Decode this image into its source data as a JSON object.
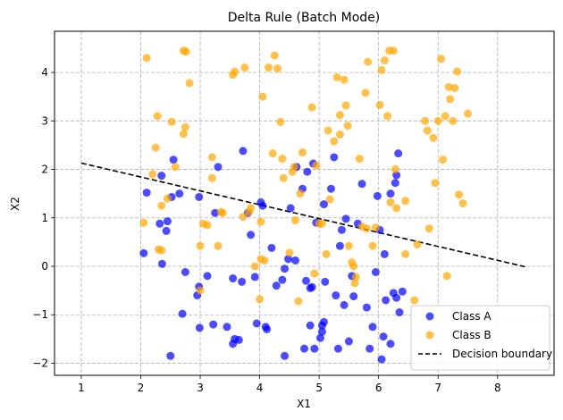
{
  "chart_data": {
    "type": "scatter",
    "title": "Delta Rule (Batch Mode)",
    "xlabel": "X1",
    "ylabel": "X2",
    "xlim": [
      0.55,
      8.95
    ],
    "ylim": [
      -2.25,
      4.85
    ],
    "xticks": [
      1,
      2,
      3,
      4,
      5,
      6,
      7,
      8
    ],
    "yticks": [
      -2,
      -1,
      0,
      1,
      2,
      3,
      4
    ],
    "grid": true,
    "legend_position": "lower-right",
    "colors": {
      "class_a": "#0000ff",
      "class_b": "#ffa500",
      "boundary": "#000000"
    },
    "series": [
      {
        "name": "Class A",
        "points": [
          [
            2.05,
            0.27
          ],
          [
            2.1,
            1.52
          ],
          [
            2.32,
            0.88
          ],
          [
            2.36,
            0.05
          ],
          [
            2.35,
            1.87
          ],
          [
            2.45,
            0.93
          ],
          [
            2.43,
            0.73
          ],
          [
            2.52,
            1.43
          ],
          [
            2.55,
            2.2
          ],
          [
            2.5,
            -1.85
          ],
          [
            2.65,
            1.5
          ],
          [
            2.7,
            -0.98
          ],
          [
            2.75,
            -0.12
          ],
          [
            2.95,
            -0.6
          ],
          [
            2.98,
            -0.42
          ],
          [
            2.98,
            1.43
          ],
          [
            2.99,
            -1.27
          ],
          [
            3.12,
            -0.2
          ],
          [
            3.22,
            -1.2
          ],
          [
            3.25,
            1.1
          ],
          [
            3.3,
            2.05
          ],
          [
            3.45,
            -1.25
          ],
          [
            3.55,
            -0.25
          ],
          [
            3.55,
            -1.6
          ],
          [
            3.58,
            -1.5
          ],
          [
            3.65,
            -1.52
          ],
          [
            3.7,
            -0.32
          ],
          [
            3.72,
            2.38
          ],
          [
            3.8,
            1.1
          ],
          [
            3.85,
            0.65
          ],
          [
            3.92,
            -0.22
          ],
          [
            3.95,
            -1.18
          ],
          [
            4.02,
            1.32
          ],
          [
            4.05,
            1.25
          ],
          [
            4.1,
            -1.25
          ],
          [
            4.12,
            -1.3
          ],
          [
            4.2,
            0.38
          ],
          [
            4.28,
            -0.4
          ],
          [
            4.38,
            -0.28
          ],
          [
            4.42,
            -1.85
          ],
          [
            4.42,
            -0.05
          ],
          [
            4.48,
            0.15
          ],
          [
            4.52,
            1.2
          ],
          [
            4.6,
            0.12
          ],
          [
            4.62,
            2.05
          ],
          [
            4.72,
            1.6
          ],
          [
            4.75,
            -1.7
          ],
          [
            4.78,
            -0.3
          ],
          [
            4.8,
            1.95
          ],
          [
            4.85,
            -1.22
          ],
          [
            4.85,
            -0.45
          ],
          [
            4.88,
            -0.43
          ],
          [
            4.9,
            2.12
          ],
          [
            4.92,
            -1.7
          ],
          [
            4.95,
            0.9
          ],
          [
            5.02,
            -1.48
          ],
          [
            5.05,
            -1.22
          ],
          [
            5.08,
            -1.15
          ],
          [
            5.05,
            -1.35
          ],
          [
            5.08,
            1.28
          ],
          [
            5.1,
            -0.32
          ],
          [
            5.2,
            1.6
          ],
          [
            5.25,
            2.25
          ],
          [
            5.28,
            -0.6
          ],
          [
            5.32,
            -1.7
          ],
          [
            5.35,
            0.42
          ],
          [
            5.38,
            0.75
          ],
          [
            5.42,
            -0.8
          ],
          [
            5.45,
            0.98
          ],
          [
            5.5,
            -1.55
          ],
          [
            5.55,
            -0.2
          ],
          [
            5.58,
            -0.62
          ],
          [
            5.65,
            0.88
          ],
          [
            5.72,
            1.7
          ],
          [
            5.8,
            -0.85
          ],
          [
            5.85,
            -1.7
          ],
          [
            5.9,
            -1.25
          ],
          [
            5.95,
            -0.12
          ],
          [
            5.98,
            1.45
          ],
          [
            6.02,
            0.75
          ],
          [
            6.05,
            -1.92
          ],
          [
            6.08,
            -1.45
          ],
          [
            6.1,
            0.25
          ],
          [
            6.12,
            -0.7
          ],
          [
            6.2,
            1.5
          ],
          [
            6.2,
            -1.6
          ],
          [
            6.25,
            -0.55
          ],
          [
            6.28,
            1.72
          ],
          [
            6.3,
            -0.65
          ],
          [
            6.3,
            1.88
          ],
          [
            6.33,
            2.33
          ],
          [
            6.4,
            -0.52
          ],
          [
            6.35,
            -0.95
          ]
        ]
      },
      {
        "name": "Class B",
        "points": [
          [
            2.1,
            4.3
          ],
          [
            2.05,
            0.9
          ],
          [
            2.2,
            1.9
          ],
          [
            2.25,
            2.45
          ],
          [
            2.28,
            3.1
          ],
          [
            2.3,
            0.35
          ],
          [
            2.35,
            0.33
          ],
          [
            2.35,
            1.25
          ],
          [
            2.45,
            1.4
          ],
          [
            2.52,
            2.98
          ],
          [
            2.58,
            2.05
          ],
          [
            2.72,
            2.73
          ],
          [
            2.72,
            4.45
          ],
          [
            2.75,
            2.87
          ],
          [
            2.76,
            4.43
          ],
          [
            2.82,
            3.78
          ],
          [
            3.0,
            0.42
          ],
          [
            3.0,
            -0.5
          ],
          [
            3.05,
            0.88
          ],
          [
            3.12,
            0.85
          ],
          [
            3.2,
            1.82
          ],
          [
            3.2,
            2.25
          ],
          [
            3.3,
            0.42
          ],
          [
            3.35,
            1.12
          ],
          [
            3.38,
            1.1
          ],
          [
            3.55,
            3.95
          ],
          [
            3.58,
            4.02
          ],
          [
            3.72,
            1.02
          ],
          [
            3.75,
            4.1
          ],
          [
            3.82,
            1.12
          ],
          [
            3.85,
            1.2
          ],
          [
            3.92,
            0.0
          ],
          [
            4.0,
            -0.68
          ],
          [
            4.02,
            0.15
          ],
          [
            4.02,
            0.92
          ],
          [
            4.05,
            3.5
          ],
          [
            4.08,
            0.12
          ],
          [
            4.15,
            4.1
          ],
          [
            4.22,
            2.33
          ],
          [
            4.25,
            4.35
          ],
          [
            4.3,
            4.08
          ],
          [
            4.35,
            2.98
          ],
          [
            4.38,
            2.22
          ],
          [
            4.4,
            1.82
          ],
          [
            4.5,
            0.28
          ],
          [
            4.55,
            1.95
          ],
          [
            4.58,
            2.05
          ],
          [
            4.6,
            0.95
          ],
          [
            4.65,
            -0.72
          ],
          [
            4.68,
            1.5
          ],
          [
            4.72,
            2.35
          ],
          [
            4.88,
            3.28
          ],
          [
            4.92,
            -0.15
          ],
          [
            4.95,
            2.08
          ],
          [
            5.0,
            0.88
          ],
          [
            5.05,
            0.88
          ],
          [
            5.12,
            0.25
          ],
          [
            5.15,
            2.8
          ],
          [
            5.18,
            1.38
          ],
          [
            5.25,
            2.58
          ],
          [
            5.3,
            3.9
          ],
          [
            5.35,
            2.72
          ],
          [
            5.35,
            3.12
          ],
          [
            5.42,
            3.85
          ],
          [
            5.45,
            3.32
          ],
          [
            5.48,
            2.9
          ],
          [
            5.5,
            0.42
          ],
          [
            5.55,
            0.08
          ],
          [
            5.58,
            0.0
          ],
          [
            5.6,
            -0.35
          ],
          [
            5.62,
            -0.22
          ],
          [
            5.68,
            2.22
          ],
          [
            5.72,
            0.82
          ],
          [
            5.78,
            3.58
          ],
          [
            5.8,
            0.78
          ],
          [
            5.82,
            4.22
          ],
          [
            5.9,
            0.42
          ],
          [
            5.95,
            0.8
          ],
          [
            6.02,
            3.33
          ],
          [
            6.05,
            4.05
          ],
          [
            6.1,
            4.25
          ],
          [
            6.15,
            3.1
          ],
          [
            6.18,
            4.45
          ],
          [
            6.2,
            1.32
          ],
          [
            6.25,
            4.45
          ],
          [
            6.28,
            2.0
          ],
          [
            6.3,
            1.2
          ],
          [
            6.45,
            1.35
          ],
          [
            6.45,
            0.25
          ],
          [
            6.65,
            0.45
          ],
          [
            6.78,
            3.0
          ],
          [
            6.82,
            2.8
          ],
          [
            6.85,
            0.78
          ],
          [
            6.92,
            2.65
          ],
          [
            6.95,
            1.72
          ],
          [
            7.0,
            3.0
          ],
          [
            7.05,
            4.28
          ],
          [
            7.08,
            2.2
          ],
          [
            7.12,
            3.1
          ],
          [
            7.15,
            -0.2
          ],
          [
            7.18,
            3.7
          ],
          [
            7.2,
            3.45
          ],
          [
            7.25,
            3.0
          ],
          [
            7.28,
            3.68
          ],
          [
            7.32,
            4.02
          ],
          [
            7.35,
            1.48
          ],
          [
            7.42,
            1.3
          ],
          [
            7.5,
            3.15
          ],
          [
            6.6,
            -0.7
          ]
        ]
      }
    ],
    "boundary": {
      "name": "Decision boundary",
      "x": [
        1.0,
        8.5
      ],
      "y": [
        2.13,
        -0.02
      ]
    }
  }
}
